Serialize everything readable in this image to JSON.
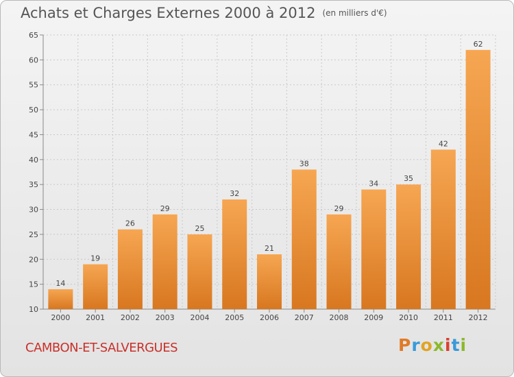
{
  "title": "Achats et Charges Externes 2000 à 2012",
  "subtitle": "(en milliers d'€)",
  "commune": "CAMBON-ET-SALVERGUES",
  "logo": {
    "text": "Proxiti",
    "letters": [
      "P",
      "r",
      "o",
      "x",
      "i",
      "t",
      "i"
    ],
    "colors": [
      "#e07b27",
      "#3a9ad9",
      "#e0a424",
      "#8cb92c",
      "#d8402e",
      "#3a9ad9",
      "#8cb92c"
    ]
  },
  "colors": {
    "bar_top": "#f6a652",
    "bar_bottom": "#d87720",
    "axis": "#888888",
    "grid": "#c8c8c8",
    "title": "#555555",
    "commune": "#c8302a"
  },
  "chart_data": {
    "type": "bar",
    "categories": [
      "2000",
      "2001",
      "2002",
      "2003",
      "2004",
      "2005",
      "2006",
      "2007",
      "2008",
      "2009",
      "2010",
      "2011",
      "2012"
    ],
    "values": [
      14,
      19,
      26,
      29,
      25,
      32,
      21,
      38,
      29,
      34,
      35,
      42,
      62
    ],
    "ylim": [
      10,
      65
    ],
    "yticks": [
      10,
      15,
      20,
      25,
      30,
      35,
      40,
      45,
      50,
      55,
      60,
      65
    ],
    "grid": true,
    "data_labels": true
  }
}
